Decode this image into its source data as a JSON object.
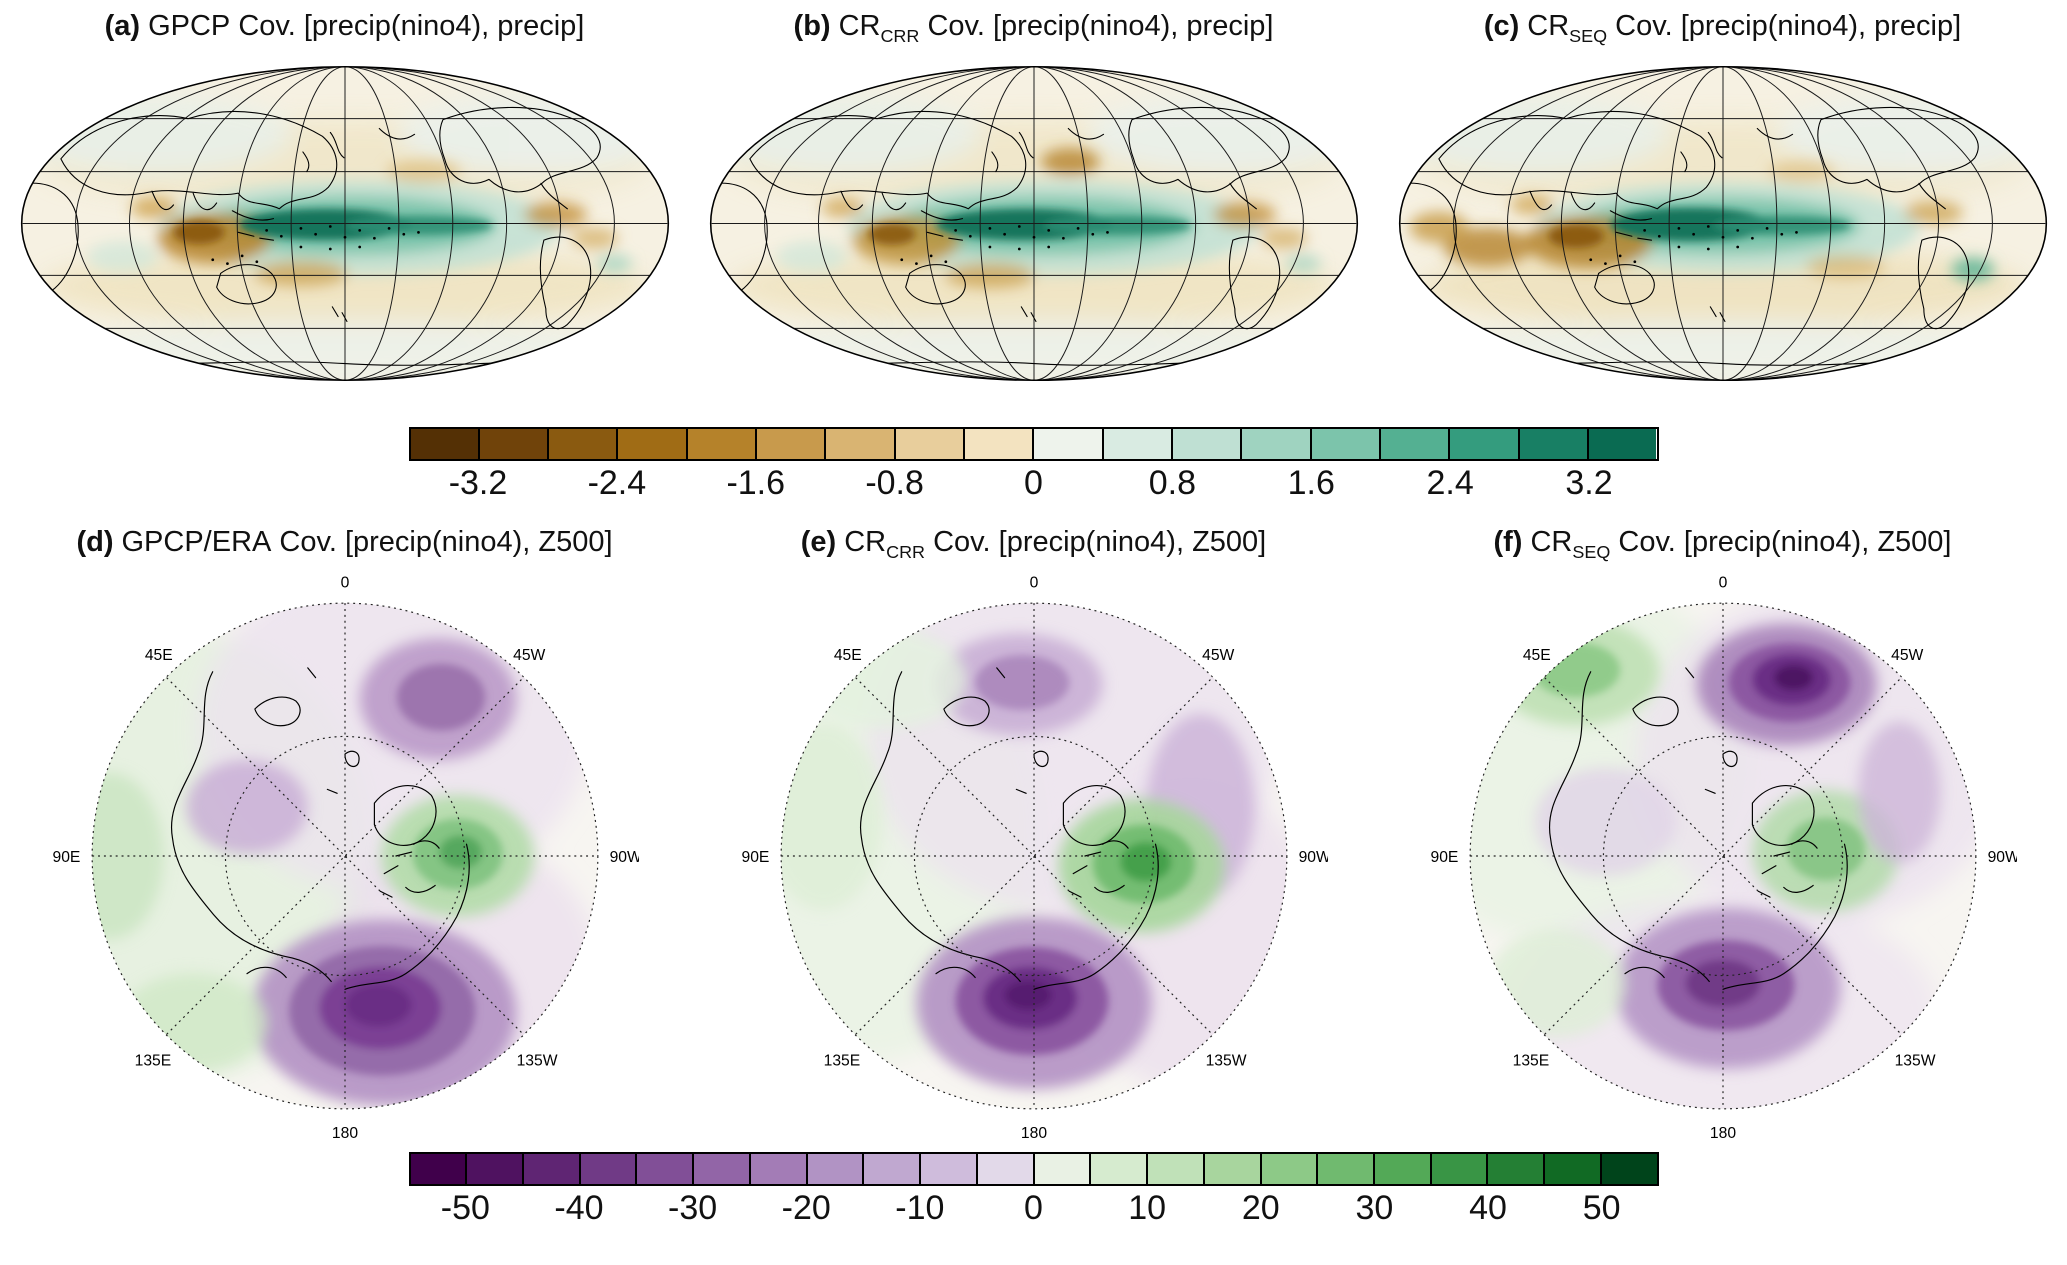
{
  "panels": {
    "a": {
      "label": "(a)",
      "pre": "GPCP",
      "sub": "",
      "post": " Cov. [precip(nino4), precip]"
    },
    "b": {
      "label": "(b)",
      "pre": "CR",
      "sub": "CRR",
      "post": " Cov. [precip(nino4), precip]"
    },
    "c": {
      "label": "(c)",
      "pre": "CR",
      "sub": "SEQ",
      "post": " Cov. [precip(nino4), precip]"
    },
    "d": {
      "label": "(d)",
      "pre": "GPCP/ERA",
      "sub": "",
      "post": " Cov. [precip(nino4), Z500]"
    },
    "e": {
      "label": "(e)",
      "pre": "CR",
      "sub": "CRR",
      "post": " Cov. [precip(nino4), Z500]"
    },
    "f": {
      "label": "(f)",
      "pre": "CR",
      "sub": "SEQ",
      "post": " Cov. [precip(nino4), Z500]"
    }
  },
  "colorbars": {
    "precip": {
      "tick_labels": [
        "-3.2",
        "-2.4",
        "-1.6",
        "-0.8",
        "0",
        "0.8",
        "1.6",
        "2.4",
        "3.2"
      ],
      "colors": [
        "#543005",
        "#70430a",
        "#8a5a10",
        "#a06c15",
        "#b5822a",
        "#c89a4c",
        "#d9b472",
        "#e8ce9c",
        "#f3e3c0",
        "#eef3ec",
        "#d9ebe2",
        "#bfe0d3",
        "#9fd3c0",
        "#7cc4ab",
        "#54b092",
        "#349c7e",
        "#187f64",
        "#0a6b52"
      ]
    },
    "z500": {
      "tick_labels": [
        "-50",
        "-40",
        "-30",
        "-20",
        "-10",
        "0",
        "10",
        "20",
        "30",
        "40",
        "50"
      ],
      "colors": [
        "#40004b",
        "#4f1260",
        "#5f2573",
        "#703a86",
        "#814f97",
        "#9265a7",
        "#a37cb6",
        "#b193c4",
        "#c0a8d0",
        "#cfbcdc",
        "#e2d9e9",
        "#e9f1e4",
        "#d6ebcf",
        "#c0e1b8",
        "#a8d59e",
        "#8dc987",
        "#70ba6f",
        "#53a957",
        "#399545",
        "#247f34",
        "#116a24",
        "#00441b"
      ]
    }
  },
  "polar_labels": {
    "n": "0",
    "ne": "45W",
    "e": "90W",
    "se": "135W",
    "s": "180",
    "sw": "135E",
    "w": "90E",
    "nw": "45E"
  },
  "chart_data": [
    {
      "type": "heatmap",
      "panel": "a",
      "title": "(a) GPCP Cov. [precip(nino4), precip]",
      "projection": "global Robinson, Pacific-centered",
      "colorbar_ticks": [
        -3.2,
        -2.4,
        -1.6,
        -0.8,
        0,
        0.8,
        1.6,
        2.4,
        3.2
      ],
      "value_range": [
        -3.6,
        3.6
      ],
      "palette": "brown (negative) to teal (positive), BrBG-like",
      "features": [
        "strong positive covariance band (>3.2) along the equatorial central/western Pacific near the dateline",
        "negative covariance (to ~-2.4) over the Maritime Continent and far western Pacific",
        "weaker negatives over the tropical Indian Ocean, Central America and tropical Atlantic",
        "near-zero covariance over most mid and high latitudes",
        "stippling (black dots) along the equatorial Pacific band"
      ]
    },
    {
      "type": "heatmap",
      "panel": "b",
      "title": "(b) CRcrr Cov. [precip(nino4), precip]",
      "projection": "global Robinson, Pacific-centered",
      "colorbar_ticks": [
        -3.2,
        -2.4,
        -1.6,
        -0.8,
        0,
        0.8,
        1.6,
        2.4,
        3.2
      ],
      "value_range": [
        -3.6,
        3.6
      ],
      "palette": "brown (negative) to teal (positive), BrBG-like",
      "features": [
        "pattern very similar to GPCP panel (a)",
        "positive equatorial Pacific band slightly broader and extended eastward",
        "additional brown negative patch over the northwest tropical Pacific",
        "negatives over the Maritime Continent and tropical Atlantic"
      ]
    },
    {
      "type": "heatmap",
      "panel": "c",
      "title": "(c) CRseq Cov. [precip(nino4), precip]",
      "projection": "global Robinson, Pacific-centered",
      "colorbar_ticks": [
        -3.2,
        -2.4,
        -1.6,
        -0.8,
        0,
        0.8,
        1.6,
        2.4,
        3.2
      ],
      "value_range": [
        -3.6,
        3.6
      ],
      "palette": "brown (negative) to teal (positive), BrBG-like",
      "features": [
        "positive equatorial band shifted slightly west and more compact",
        "stronger negatives over the Indian Ocean and tropical Africa",
        "positive patch over eastern South America",
        "scattered weak negatives across the subtropics"
      ]
    },
    {
      "type": "heatmap",
      "panel": "d",
      "title": "(d) GPCP/ERA Cov. [precip(nino4), Z500]",
      "projection": "north polar stereographic, 0 longitude at top, E longitudes left, W longitudes right",
      "colorbar_ticks": [
        -50,
        -40,
        -30,
        -20,
        -10,
        0,
        10,
        20,
        30,
        40,
        50
      ],
      "value_range": [
        -55,
        55
      ],
      "palette": "purple (negative) to green (positive), PRGn-like",
      "features": [
        "strong negative center (~-50) over the North Pacific near 180/135W",
        "secondary negative center over the North Atlantic near 45W",
        "positive center (~+25) over northeastern Canada and Greenland",
        "weak positive covariance over western Eurasia and the left (eastern-longitude) edge"
      ]
    },
    {
      "type": "heatmap",
      "panel": "e",
      "title": "(e) CRcrr Cov. [precip(nino4), Z500]",
      "projection": "north polar stereographic, 0 longitude at top, E longitudes left, W longitudes right",
      "colorbar_ticks": [
        -50,
        -40,
        -30,
        -20,
        -10,
        0,
        10,
        20,
        30,
        40,
        50
      ],
      "value_range": [
        -55,
        55
      ],
      "palette": "purple (negative) to green (positive), PRGn-like",
      "features": [
        "deep negative center (~-50) over the North Pacific just right of 180",
        "strong positive center (~+30) over eastern Canada south of Greenland",
        "negative band arcing across the North Atlantic (right edge) and over the pole",
        "weak pale-green positives along the Eurasian (left) side"
      ]
    },
    {
      "type": "heatmap",
      "panel": "f",
      "title": "(f) CRseq Cov. [precip(nino4), Z500]",
      "projection": "north polar stereographic, 0 longitude at top, E longitudes left, W longitudes right",
      "colorbar_ticks": [
        -50,
        -40,
        -30,
        -20,
        -10,
        0,
        10,
        20,
        30,
        40,
        50
      ],
      "value_range": [
        -55,
        55
      ],
      "palette": "purple (negative) to green (positive), PRGn-like",
      "features": [
        "strongest negative center (~-50) over the North Atlantic near 45W",
        "moderate negative center over the North Pacific near 180",
        "positive center over northeastern Canada/Greenland",
        "positive area over Scandinavia / northern Europe (top-left)"
      ]
    }
  ]
}
